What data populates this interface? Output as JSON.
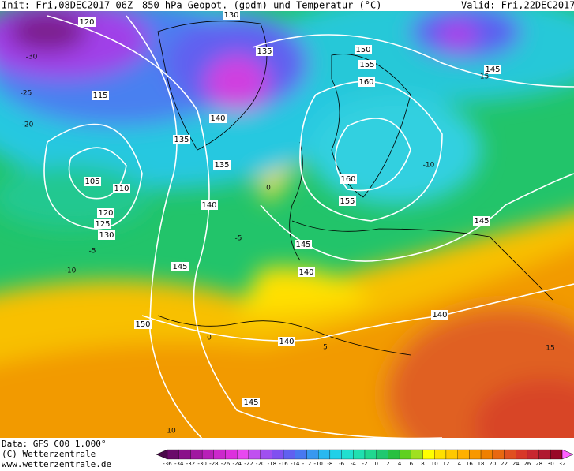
{
  "header": {
    "init": "Init: Fri,08DEC2017 06Z",
    "title": "850 hPa Geopot. (gpdm) und Temperatur (°C)",
    "valid": "Valid: Fri,22DEC2017 06Z"
  },
  "geopotential_labels": [
    "120",
    "130",
    "135",
    "150",
    "155",
    "160",
    "145",
    "115",
    "140",
    "135",
    "135",
    "105",
    "110",
    "160",
    "155",
    "140",
    "120",
    "125",
    "130",
    "145",
    "145",
    "140",
    "145",
    "140",
    "150",
    "140",
    "145"
  ],
  "temperature_labels": [
    "-30",
    "-25",
    "-20",
    "-15",
    "-10",
    "-5",
    "-10",
    "0",
    "-5",
    "0",
    "5",
    "10",
    "15"
  ],
  "footer": {
    "data": "Data: GFS C00 1.000°",
    "copyright": "(C) Wetterzentrale",
    "url": "www.wetterzentrale.de"
  },
  "colorbar": {
    "labels": [
      "-36",
      "-34",
      "-32",
      "-30",
      "-28",
      "-26",
      "-24",
      "-22",
      "-20",
      "-18",
      "-16",
      "-14",
      "-12",
      "-10",
      "-8",
      "-6",
      "-4",
      "-2",
      "0",
      "2",
      "4",
      "6",
      "8",
      "10",
      "12",
      "14",
      "16",
      "18",
      "20",
      "22",
      "24",
      "26",
      "28",
      "30",
      "32"
    ],
    "colors": [
      "#4a0a4a",
      "#6a0a6a",
      "#8a108a",
      "#a018a0",
      "#b820b8",
      "#cc28cc",
      "#dd30dd",
      "#e848f0",
      "#c050f0",
      "#a050f0",
      "#8050f0",
      "#6060f0",
      "#4878f0",
      "#3898f0",
      "#28b8f0",
      "#20d0e8",
      "#20e0d0",
      "#20e0b0",
      "#20d890",
      "#20c870",
      "#28c040",
      "#60d020",
      "#a0e020",
      "#ffff00",
      "#ffe000",
      "#ffc800",
      "#ffb000",
      "#f89800",
      "#f08000",
      "#e86810",
      "#e05020",
      "#d83828",
      "#c82830",
      "#b01830",
      "#980828",
      "#ff60ff"
    ]
  }
}
